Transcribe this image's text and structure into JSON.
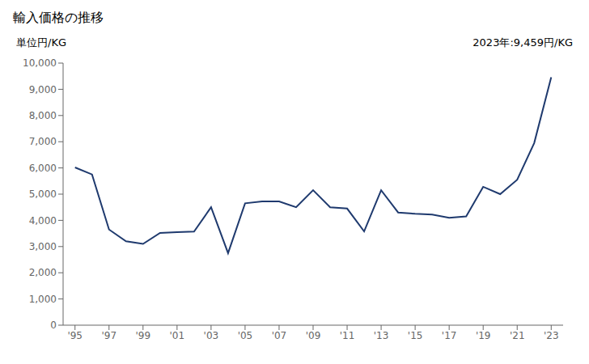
{
  "chart_data": {
    "type": "line",
    "title": "輸入価格の推移",
    "y_label": "単位円/KG",
    "annotation": "2023年:9,459円/KG",
    "x": [
      1995,
      1996,
      1997,
      1998,
      1999,
      2000,
      2001,
      2002,
      2003,
      2004,
      2005,
      2006,
      2007,
      2008,
      2009,
      2010,
      2011,
      2012,
      2013,
      2014,
      2015,
      2016,
      2017,
      2018,
      2019,
      2020,
      2021,
      2022,
      2023
    ],
    "values": [
      6020,
      5750,
      3650,
      3200,
      3100,
      3520,
      3550,
      3570,
      4500,
      2750,
      4650,
      4720,
      4720,
      4500,
      5150,
      4500,
      4450,
      3580,
      5150,
      4300,
      4250,
      4220,
      4100,
      4150,
      5280,
      5000,
      5550,
      6950,
      9459
    ],
    "color": "#1f3a6e",
    "xlim": [
      1994.3,
      2023.7
    ],
    "ylim": [
      0,
      10000
    ],
    "xticks": [
      {
        "value": 1995,
        "label": "'95"
      },
      {
        "value": 1997,
        "label": "'97"
      },
      {
        "value": 1999,
        "label": "'99"
      },
      {
        "value": 2001,
        "label": "'01"
      },
      {
        "value": 2003,
        "label": "'03"
      },
      {
        "value": 2005,
        "label": "'05"
      },
      {
        "value": 2007,
        "label": "'07"
      },
      {
        "value": 2009,
        "label": "'09"
      },
      {
        "value": 2011,
        "label": "'11"
      },
      {
        "value": 2013,
        "label": "'13"
      },
      {
        "value": 2015,
        "label": "'15"
      },
      {
        "value": 2017,
        "label": "'17"
      },
      {
        "value": 2019,
        "label": "'19"
      },
      {
        "value": 2021,
        "label": "'21"
      },
      {
        "value": 2023,
        "label": "'23"
      }
    ],
    "yticks": [
      0,
      {
        "value": 1000,
        "label": "1,000"
      },
      {
        "value": 2000,
        "label": "2,000"
      },
      {
        "value": 3000,
        "label": "3,000"
      },
      {
        "value": 4000,
        "label": "4,000"
      },
      {
        "value": 5000,
        "label": "5,000"
      },
      {
        "value": 6000,
        "label": "6,000"
      },
      {
        "value": 7000,
        "label": "7,000"
      },
      {
        "value": 8000,
        "label": "8,000"
      },
      {
        "value": 9000,
        "label": "9,000"
      },
      {
        "value": 10000,
        "label": "10,000"
      }
    ],
    "grid": false
  }
}
